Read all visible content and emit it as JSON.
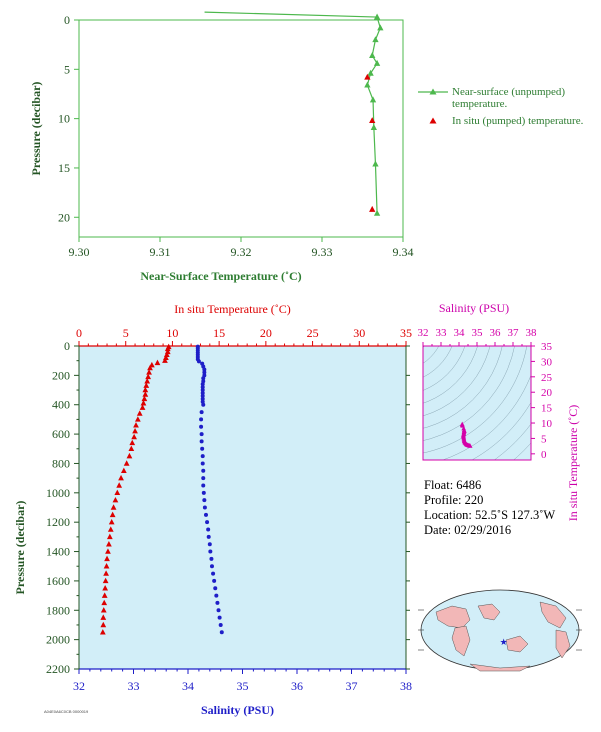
{
  "colors": {
    "green": "#4db84d",
    "green_text": "#2e7d32",
    "dark_green": "#245524",
    "red": "#dd0000",
    "blue": "#1e1ec8",
    "magenta": "#d400a8",
    "magenta_label": "#cc00aa",
    "panel_bg": "#d2eef8",
    "land": "#f2b7b7"
  },
  "chart_data": [
    {
      "type": "line",
      "xlabel": "Near-Surface Temperature (˚C)",
      "ylabel": "Pressure (decibar)",
      "xlim": [
        9.3,
        9.34
      ],
      "ylim": [
        22,
        0
      ],
      "x_ticks": [
        "9.30",
        "9.31",
        "9.32",
        "9.33",
        "9.34"
      ],
      "y_ticks": [
        "0",
        "5",
        "10",
        "15",
        "20"
      ],
      "series": [
        {
          "name": "Near-surface (unpumped) temperature.",
          "marker": "triangle",
          "points": [
            [
              9.3155,
              -0.8
            ],
            [
              9.3368,
              -0.3
            ],
            [
              9.3372,
              0.8
            ],
            [
              9.3366,
              2.0
            ],
            [
              9.3362,
              3.6
            ],
            [
              9.3368,
              4.4
            ],
            [
              9.336,
              5.4
            ],
            [
              9.3356,
              6.6
            ],
            [
              9.3363,
              8.1
            ],
            [
              9.3364,
              10.9
            ],
            [
              9.3366,
              14.6
            ],
            [
              9.3368,
              19.6
            ]
          ]
        },
        {
          "name": "In situ (pumped) temperature.",
          "marker": "triangle",
          "points": [
            [
              9.3356,
              5.8
            ],
            [
              9.3362,
              10.2
            ],
            [
              9.3362,
              19.2
            ]
          ]
        }
      ]
    },
    {
      "type": "scatter",
      "title_top": "In situ Temperature (˚C)",
      "xlabel": "Salinity (PSU)",
      "ylabel": "Pressure (decibar)",
      "temperature_axis": {
        "lim": [
          0,
          35
        ],
        "ticks": [
          "0",
          "5",
          "10",
          "15",
          "20",
          "25",
          "30",
          "35"
        ]
      },
      "salinity_axis": {
        "lim": [
          32,
          38
        ],
        "ticks": [
          "32",
          "33",
          "34",
          "35",
          "36",
          "37",
          "38"
        ]
      },
      "pressure_axis": {
        "lim": [
          0,
          2200
        ],
        "ticks": [
          "0",
          "200",
          "400",
          "600",
          "800",
          "1000",
          "1200",
          "1400",
          "1600",
          "1800",
          "2000",
          "2200"
        ]
      },
      "series": [
        {
          "name": "temperature",
          "marker": "triangle",
          "color": "red",
          "points": [
            [
              9.6,
              6
            ],
            [
              9.5,
              20
            ],
            [
              9.5,
              40
            ],
            [
              9.4,
              60
            ],
            [
              9.3,
              80
            ],
            [
              9.2,
              100
            ],
            [
              8.4,
              115
            ],
            [
              7.8,
              130
            ],
            [
              7.6,
              150
            ],
            [
              7.5,
              180
            ],
            [
              7.4,
              210
            ],
            [
              7.3,
              240
            ],
            [
              7.2,
              270
            ],
            [
              7.1,
              300
            ],
            [
              7.1,
              330
            ],
            [
              7.0,
              360
            ],
            [
              6.9,
              390
            ],
            [
              6.8,
              420
            ],
            [
              6.5,
              460
            ],
            [
              6.3,
              500
            ],
            [
              6.1,
              540
            ],
            [
              6.0,
              580
            ],
            [
              5.9,
              620
            ],
            [
              5.7,
              660
            ],
            [
              5.6,
              700
            ],
            [
              5.4,
              750
            ],
            [
              5.1,
              800
            ],
            [
              4.8,
              850
            ],
            [
              4.5,
              900
            ],
            [
              4.3,
              950
            ],
            [
              4.1,
              1000
            ],
            [
              3.9,
              1050
            ],
            [
              3.7,
              1100
            ],
            [
              3.6,
              1150
            ],
            [
              3.5,
              1200
            ],
            [
              3.4,
              1250
            ],
            [
              3.3,
              1300
            ],
            [
              3.2,
              1350
            ],
            [
              3.1,
              1400
            ],
            [
              3.0,
              1450
            ],
            [
              2.95,
              1500
            ],
            [
              2.9,
              1550
            ],
            [
              2.85,
              1600
            ],
            [
              2.8,
              1650
            ],
            [
              2.75,
              1700
            ],
            [
              2.7,
              1750
            ],
            [
              2.65,
              1800
            ],
            [
              2.6,
              1850
            ],
            [
              2.6,
              1900
            ],
            [
              2.55,
              1950
            ]
          ]
        },
        {
          "name": "salinity",
          "marker": "dot",
          "color": "blue",
          "points": [
            [
              34.18,
              4
            ],
            [
              34.18,
              15
            ],
            [
              34.18,
              30
            ],
            [
              34.18,
              45
            ],
            [
              34.18,
              60
            ],
            [
              34.18,
              75
            ],
            [
              34.18,
              90
            ],
            [
              34.2,
              105
            ],
            [
              34.26,
              120
            ],
            [
              34.28,
              140
            ],
            [
              34.3,
              160
            ],
            [
              34.3,
              180
            ],
            [
              34.3,
              200
            ],
            [
              34.28,
              220
            ],
            [
              34.28,
              240
            ],
            [
              34.27,
              260
            ],
            [
              34.27,
              280
            ],
            [
              34.27,
              300
            ],
            [
              34.27,
              320
            ],
            [
              34.27,
              340
            ],
            [
              34.27,
              360
            ],
            [
              34.27,
              380
            ],
            [
              34.28,
              400
            ],
            [
              34.25,
              450
            ],
            [
              34.24,
              500
            ],
            [
              34.24,
              550
            ],
            [
              34.25,
              600
            ],
            [
              34.25,
              650
            ],
            [
              34.26,
              700
            ],
            [
              34.27,
              750
            ],
            [
              34.27,
              800
            ],
            [
              34.28,
              850
            ],
            [
              34.28,
              900
            ],
            [
              34.28,
              950
            ],
            [
              34.29,
              1000
            ],
            [
              34.3,
              1050
            ],
            [
              34.31,
              1100
            ],
            [
              34.33,
              1150
            ],
            [
              34.35,
              1200
            ],
            [
              34.37,
              1250
            ],
            [
              34.38,
              1300
            ],
            [
              34.4,
              1350
            ],
            [
              34.41,
              1400
            ],
            [
              34.43,
              1450
            ],
            [
              34.44,
              1500
            ],
            [
              34.46,
              1550
            ],
            [
              34.48,
              1600
            ],
            [
              34.5,
              1650
            ],
            [
              34.52,
              1700
            ],
            [
              34.54,
              1750
            ],
            [
              34.56,
              1800
            ],
            [
              34.58,
              1850
            ],
            [
              34.6,
              1900
            ],
            [
              34.62,
              1950
            ]
          ]
        }
      ]
    },
    {
      "type": "scatter",
      "title": "Salinity (PSU)",
      "ylabel": "In situ Temperature (˚C)",
      "salinity_axis": {
        "lim": [
          32,
          38
        ],
        "ticks": [
          "32",
          "33",
          "34",
          "35",
          "36",
          "37",
          "38"
        ]
      },
      "temperature_axis": {
        "lim": [
          -2,
          35
        ],
        "ticks": [
          "0",
          "5",
          "10",
          "15",
          "20",
          "25",
          "30",
          "35"
        ]
      },
      "points": [
        [
          34.18,
          9.6
        ],
        [
          34.18,
          9.4
        ],
        [
          34.2,
          9.1
        ],
        [
          34.26,
          8.2
        ],
        [
          34.28,
          7.6
        ],
        [
          34.3,
          7.4
        ],
        [
          34.28,
          7.1
        ],
        [
          34.27,
          6.9
        ],
        [
          34.27,
          6.5
        ],
        [
          34.25,
          6.2
        ],
        [
          34.24,
          5.9
        ],
        [
          34.25,
          5.6
        ],
        [
          34.26,
          5.3
        ],
        [
          34.27,
          4.9
        ],
        [
          34.28,
          4.5
        ],
        [
          34.29,
          4.1
        ],
        [
          34.31,
          3.7
        ],
        [
          34.35,
          3.5
        ],
        [
          34.38,
          3.3
        ],
        [
          34.41,
          3.1
        ],
        [
          34.44,
          2.95
        ],
        [
          34.48,
          2.85
        ],
        [
          34.52,
          2.75
        ],
        [
          34.56,
          2.65
        ],
        [
          34.6,
          2.6
        ],
        [
          34.62,
          2.55
        ]
      ]
    }
  ],
  "info": {
    "float": "Float:  6486",
    "profile": "Profile:  220",
    "location": "Location:  52.5˚S  127.3˚W",
    "date": "Date:  02/29/2016"
  },
  "map": {
    "marker": "star",
    "marker_icon": "star-icon",
    "marker_position": {
      "lat": -52.5,
      "lon": -127.3
    }
  },
  "footer_code": "A04E0A6C0CB 0000019"
}
